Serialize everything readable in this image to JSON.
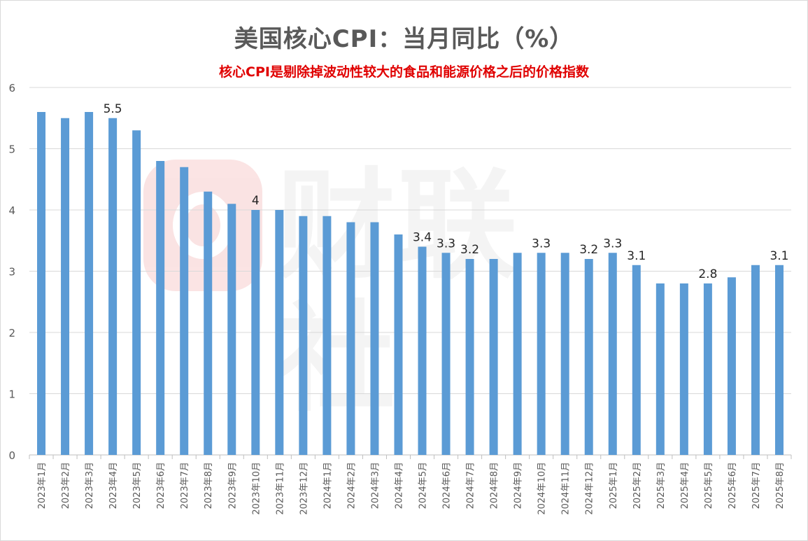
{
  "page": {
    "title": "美国核心CPI：当月同比（%）",
    "subtitle": "核心CPI是剔除掉波动性较大的食品和能源价格之后的价格指数",
    "watermark": "财联社"
  },
  "colors": {
    "bar": "#5b9bd5",
    "grid": "#d9d9d9",
    "axis_text": "#595959",
    "subtitle": "#e00000"
  },
  "chart_data": {
    "type": "bar",
    "title": "美国核心CPI：当月同比（%）",
    "subtitle": "核心CPI是剔除掉波动性较大的食品和能源价格之后的价格指数",
    "xlabel": "",
    "ylabel": "",
    "ylim": [
      0,
      6
    ],
    "yticks": [
      0,
      1,
      2,
      3,
      4,
      5,
      6
    ],
    "grid": true,
    "categories": [
      "2023年1月",
      "2023年2月",
      "2023年3月",
      "2023年4月",
      "2023年5月",
      "2023年6月",
      "2023年7月",
      "2023年8月",
      "2023年9月",
      "2023年10月",
      "2023年11月",
      "2023年12月",
      "2024年1月",
      "2024年2月",
      "2024年3月",
      "2024年4月",
      "2024年5月",
      "2024年6月",
      "2024年7月",
      "2024年8月",
      "2024年9月",
      "2024年10月",
      "2024年11月",
      "2024年12月",
      "2025年1月",
      "2025年2月",
      "2025年3月",
      "2025年4月",
      "2025年5月",
      "2025年6月",
      "2025年7月",
      "2025年8月"
    ],
    "values": [
      5.6,
      5.5,
      5.6,
      5.5,
      5.3,
      4.8,
      4.7,
      4.3,
      4.1,
      4.0,
      4.0,
      3.9,
      3.9,
      3.8,
      3.8,
      3.6,
      3.4,
      3.3,
      3.2,
      3.2,
      3.3,
      3.3,
      3.3,
      3.2,
      3.3,
      3.1,
      2.8,
      2.8,
      2.8,
      2.9,
      3.1,
      3.1
    ],
    "data_labels": [
      {
        "category": "2023年4月",
        "label": "5.5"
      },
      {
        "category": "2023年10月",
        "label": "4"
      },
      {
        "category": "2024年5月",
        "label": "3.4"
      },
      {
        "category": "2024年6月",
        "label": "3.3"
      },
      {
        "category": "2024年7月",
        "label": "3.2"
      },
      {
        "category": "2024年10月",
        "label": "3.3"
      },
      {
        "category": "2024年12月",
        "label": "3.2"
      },
      {
        "category": "2025年1月",
        "label": "3.3"
      },
      {
        "category": "2025年2月",
        "label": "3.1"
      },
      {
        "category": "2025年5月",
        "label": "2.8"
      },
      {
        "category": "2025年8月",
        "label": "3.1"
      }
    ]
  }
}
